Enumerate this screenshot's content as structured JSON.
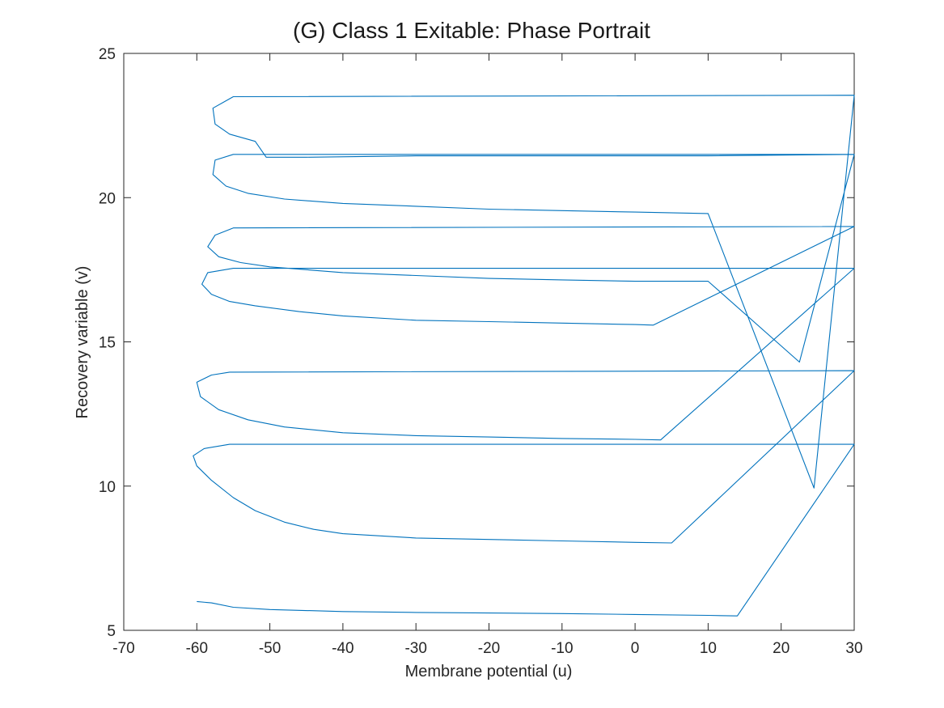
{
  "chart_data": {
    "type": "line",
    "title": "(G) Class 1 Exitable: Phase Portrait",
    "xlabel": "Membrane potential (u)",
    "ylabel": "Recovery variable (v)",
    "xlim": [
      -70,
      30
    ],
    "ylim": [
      5,
      25
    ],
    "xticks": [
      -70,
      -60,
      -50,
      -40,
      -30,
      -20,
      -10,
      0,
      10,
      20,
      30
    ],
    "yticks": [
      5,
      10,
      15,
      20,
      25
    ],
    "grid": false,
    "legend": "none",
    "series": [
      {
        "color": "#0072bd",
        "points": [
          [
            -60,
            6.0
          ],
          [
            -58,
            5.95
          ],
          [
            -55,
            5.8
          ],
          [
            -50,
            5.72
          ],
          [
            -40,
            5.65
          ],
          [
            -30,
            5.62
          ],
          [
            -20,
            5.6
          ],
          [
            -10,
            5.58
          ],
          [
            0,
            5.55
          ],
          [
            10,
            5.52
          ],
          [
            14,
            5.5
          ],
          [
            30,
            11.45
          ],
          [
            -55.5,
            11.45
          ],
          [
            -59,
            11.3
          ],
          [
            -60.5,
            11.05
          ],
          [
            -60,
            10.7
          ],
          [
            -58,
            10.2
          ],
          [
            -55,
            9.6
          ],
          [
            -52,
            9.15
          ],
          [
            -48,
            8.75
          ],
          [
            -44,
            8.5
          ],
          [
            -40,
            8.35
          ],
          [
            -30,
            8.2
          ],
          [
            -20,
            8.15
          ],
          [
            -10,
            8.1
          ],
          [
            0,
            8.05
          ],
          [
            5,
            8.03
          ],
          [
            30,
            14.0
          ],
          [
            -55.5,
            13.95
          ],
          [
            -58,
            13.85
          ],
          [
            -60,
            13.6
          ],
          [
            -59.5,
            13.1
          ],
          [
            -57,
            12.65
          ],
          [
            -53,
            12.3
          ],
          [
            -48,
            12.05
          ],
          [
            -40,
            11.85
          ],
          [
            -30,
            11.75
          ],
          [
            -20,
            11.7
          ],
          [
            -10,
            11.65
          ],
          [
            0,
            11.62
          ],
          [
            3.5,
            11.6
          ],
          [
            30,
            17.55
          ],
          [
            -55,
            17.55
          ],
          [
            -58.5,
            17.4
          ],
          [
            -59.3,
            17.0
          ],
          [
            -58,
            16.65
          ],
          [
            -55.5,
            16.4
          ],
          [
            -52,
            16.25
          ],
          [
            -46,
            16.05
          ],
          [
            -40,
            15.9
          ],
          [
            -30,
            15.75
          ],
          [
            -20,
            15.7
          ],
          [
            -10,
            15.65
          ],
          [
            0,
            15.6
          ],
          [
            2.5,
            15.58
          ],
          [
            30,
            19.0
          ],
          [
            -55,
            18.95
          ],
          [
            -57.5,
            18.7
          ],
          [
            -58.5,
            18.3
          ],
          [
            -57,
            17.95
          ],
          [
            -54,
            17.75
          ],
          [
            -50,
            17.6
          ],
          [
            -40,
            17.4
          ],
          [
            -30,
            17.3
          ],
          [
            -20,
            17.2
          ],
          [
            -10,
            17.15
          ],
          [
            0,
            17.1
          ],
          [
            10,
            17.1
          ],
          [
            22.5,
            14.3
          ],
          [
            30,
            21.5
          ],
          [
            -55,
            21.5
          ],
          [
            -57.5,
            21.3
          ],
          [
            -57.8,
            20.8
          ],
          [
            -56,
            20.4
          ],
          [
            -53,
            20.15
          ],
          [
            -48,
            19.95
          ],
          [
            -40,
            19.8
          ],
          [
            -30,
            19.7
          ],
          [
            -20,
            19.6
          ],
          [
            -10,
            19.55
          ],
          [
            0,
            19.5
          ],
          [
            10,
            19.45
          ],
          [
            24.5,
            9.93
          ],
          [
            30,
            23.55
          ],
          [
            -55,
            23.5
          ],
          [
            -57.8,
            23.1
          ],
          [
            -57.5,
            22.55
          ],
          [
            -55.5,
            22.2
          ],
          [
            -52,
            21.95
          ],
          [
            -50.5,
            21.4
          ],
          [
            -45,
            21.4
          ],
          [
            -30,
            21.45
          ],
          [
            -20,
            21.45
          ],
          [
            -10,
            21.45
          ],
          [
            0,
            21.45
          ],
          [
            10,
            21.45
          ],
          [
            30,
            21.5
          ]
        ]
      }
    ]
  }
}
